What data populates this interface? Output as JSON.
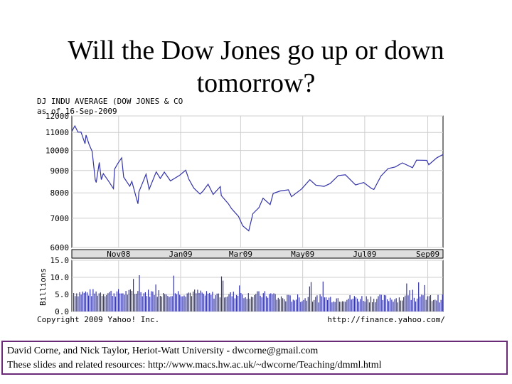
{
  "slide": {
    "title_line1": "Will the Dow Jones go up or down",
    "title_line2": "tomorrow?",
    "footer_line1": "David Corne, and Nick Taylor,  Heriot-Watt University  -  dwcorne@gmail.com",
    "footer_line2": "These slides and related resources:   http://www.macs.hw.ac.uk/~dwcorne/Teaching/dmml.html"
  },
  "chart_data": {
    "type": "line",
    "header_line1": "DJ INDU AVERAGE (DOW JONES & CO",
    "header_line2": "as of 16-Sep-2009",
    "copyright": "Copyright 2009 Yahoo! Inc.",
    "source_url": "http://finance.yahoo.com/",
    "x_range": [
      "2008-09-16",
      "2009-09-16"
    ],
    "x_tick_labels": [
      {
        "label": "Nov08",
        "date": "2008-11-01"
      },
      {
        "label": "Jan09",
        "date": "2009-01-01"
      },
      {
        "label": "Mar09",
        "date": "2009-03-01"
      },
      {
        "label": "May09",
        "date": "2009-05-01"
      },
      {
        "label": "Jul09",
        "date": "2009-07-01"
      },
      {
        "label": "Sep09",
        "date": "2009-09-01"
      }
    ],
    "price_panel": {
      "y_scale": "log",
      "ylim": [
        6000,
        12000
      ],
      "y_ticks": [
        12000,
        11000,
        10000,
        9000,
        8000,
        7000,
        6000
      ],
      "line_color": "#3333aa",
      "series": [
        {
          "points": [
            [
              "2008-09-16",
              11060
            ],
            [
              "2008-09-19",
              11388
            ],
            [
              "2008-09-22",
              11016
            ],
            [
              "2008-09-25",
              11022
            ],
            [
              "2008-09-29",
              10365
            ],
            [
              "2008-09-30",
              10850
            ],
            [
              "2008-10-03",
              10325
            ],
            [
              "2008-10-06",
              9955
            ],
            [
              "2008-10-09",
              8579
            ],
            [
              "2008-10-10",
              8451
            ],
            [
              "2008-10-13",
              9387
            ],
            [
              "2008-10-15",
              8577
            ],
            [
              "2008-10-17",
              8852
            ],
            [
              "2008-10-22",
              8519
            ],
            [
              "2008-10-27",
              8175
            ],
            [
              "2008-10-28",
              9065
            ],
            [
              "2008-10-31",
              9325
            ],
            [
              "2008-11-04",
              9625
            ],
            [
              "2008-11-06",
              8695
            ],
            [
              "2008-11-12",
              8283
            ],
            [
              "2008-11-14",
              8497
            ],
            [
              "2008-11-20",
              7552
            ],
            [
              "2008-11-21",
              8046
            ],
            [
              "2008-11-25",
              8479
            ],
            [
              "2008-11-28",
              8829
            ],
            [
              "2008-12-01",
              8149
            ],
            [
              "2008-12-08",
              8934
            ],
            [
              "2008-12-12",
              8629
            ],
            [
              "2008-12-16",
              8924
            ],
            [
              "2008-12-22",
              8519
            ],
            [
              "2008-12-31",
              8776
            ],
            [
              "2009-01-06",
              9015
            ],
            [
              "2009-01-09",
              8599
            ],
            [
              "2009-01-14",
              8200
            ],
            [
              "2009-01-20",
              7949
            ],
            [
              "2009-01-23",
              8077
            ],
            [
              "2009-01-28",
              8375
            ],
            [
              "2009-02-02",
              7936
            ],
            [
              "2009-02-09",
              8270
            ],
            [
              "2009-02-10",
              7888
            ],
            [
              "2009-02-17",
              7552
            ],
            [
              "2009-02-20",
              7365
            ],
            [
              "2009-02-27",
              7062
            ],
            [
              "2009-03-03",
              6726
            ],
            [
              "2009-03-09",
              6547
            ],
            [
              "2009-03-13",
              7170
            ],
            [
              "2009-03-19",
              7400
            ],
            [
              "2009-03-23",
              7776
            ],
            [
              "2009-03-30",
              7522
            ],
            [
              "2009-04-02",
              7978
            ],
            [
              "2009-04-09",
              8083
            ],
            [
              "2009-04-17",
              8131
            ],
            [
              "2009-04-20",
              7841
            ],
            [
              "2009-04-30",
              8168
            ],
            [
              "2009-05-08",
              8575
            ],
            [
              "2009-05-14",
              8331
            ],
            [
              "2009-05-22",
              8277
            ],
            [
              "2009-05-28",
              8403
            ],
            [
              "2009-06-05",
              8763
            ],
            [
              "2009-06-12",
              8799
            ],
            [
              "2009-06-22",
              8340
            ],
            [
              "2009-06-30",
              8447
            ],
            [
              "2009-07-08",
              8179
            ],
            [
              "2009-07-10",
              8146
            ],
            [
              "2009-07-17",
              8743
            ],
            [
              "2009-07-24",
              9093
            ],
            [
              "2009-07-31",
              9171
            ],
            [
              "2009-08-07",
              9370
            ],
            [
              "2009-08-17",
              9135
            ],
            [
              "2009-08-21",
              9505
            ],
            [
              "2009-08-31",
              9496
            ],
            [
              "2009-09-02",
              9280
            ],
            [
              "2009-09-10",
              9627
            ],
            [
              "2009-09-16",
              9791
            ]
          ]
        }
      ]
    },
    "volume_panel": {
      "y_label": "Billions",
      "ylim": [
        0,
        15
      ],
      "y_ticks": [
        "15.0",
        "10.0",
        "5.0",
        "0.0"
      ],
      "bar_color": "#3333aa"
    },
    "grid": true
  }
}
